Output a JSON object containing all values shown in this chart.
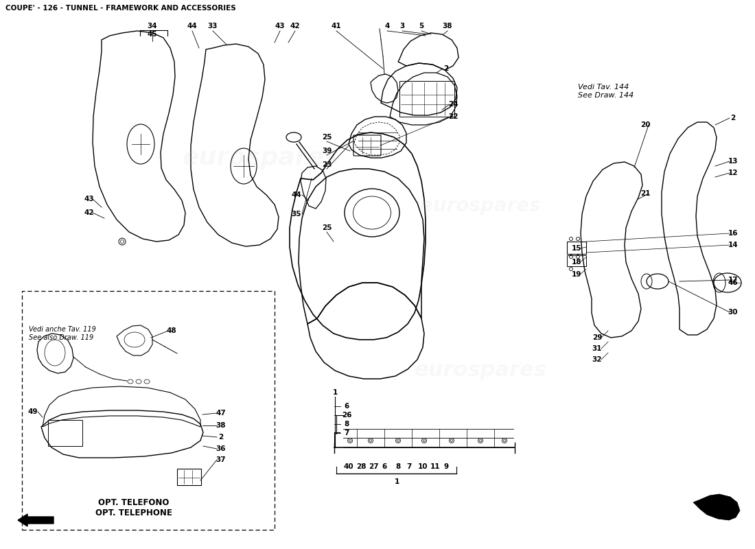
{
  "title": "COUPE' - 126 - TUNNEL - FRAMEWORK AND ACCESSORIES",
  "title_fontsize": 7.5,
  "background_color": "#ffffff",
  "vedi_tav_text": "Vedi Tav. 144\nSee Draw. 144",
  "vedi_anche_text": "Vedi anche Tav. 119\nSee also Draw. 119",
  "opt_text": "OPT. TELEFONO\nOPT. TELEPHONE"
}
